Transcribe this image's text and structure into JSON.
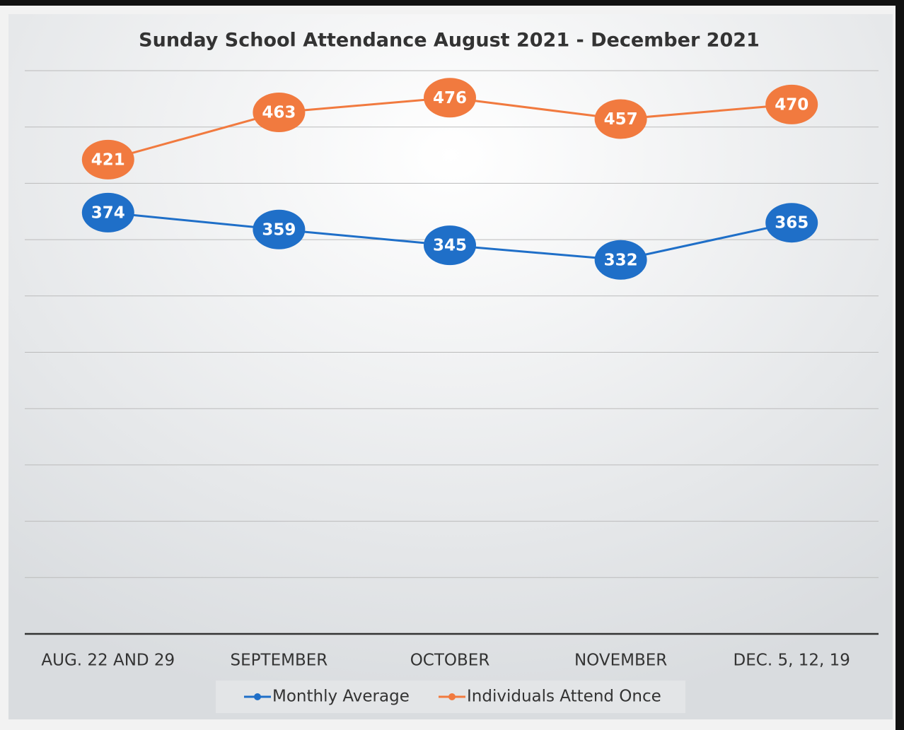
{
  "chart_data": {
    "type": "line",
    "title": "Sunday School Attendance August 2021 - December 2021",
    "categories": [
      "AUG. 22 AND 29",
      "SEPTEMBER",
      "OCTOBER",
      "NOVEMBER",
      "DEC. 5, 12, 19"
    ],
    "series": [
      {
        "name": "Monthly Average",
        "color": "#1f6fc8",
        "values": [
          374,
          359,
          345,
          332,
          365
        ]
      },
      {
        "name": "Individuals Attend Once",
        "color": "#f17a3f",
        "values": [
          421,
          463,
          476,
          457,
          470
        ]
      }
    ],
    "ylim": [
      0,
      500
    ],
    "yticks": [
      0,
      50,
      100,
      150,
      200,
      250,
      300,
      350,
      400,
      450,
      500
    ],
    "grid": true,
    "legend": "bottom"
  }
}
